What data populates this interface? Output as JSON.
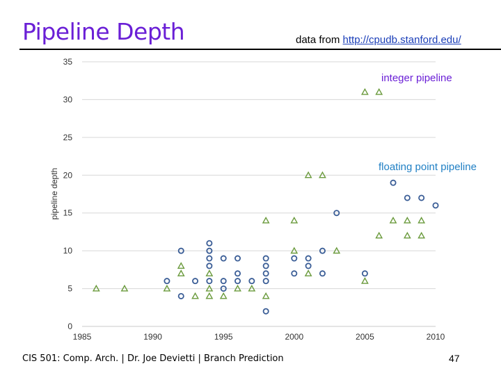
{
  "slide": {
    "title": "Pipeline Depth",
    "source_prefix": "data from ",
    "source_link": "http://cpudb.stanford.edu/",
    "footer": "CIS 501: Comp. Arch.  |  Dr. Joe Devietti  |  Branch Prediction",
    "page_number": "47"
  },
  "colors": {
    "title": "#6a1fd6",
    "integer": "#6a9a3c",
    "floating": "#3a5d96",
    "integer_label": "#6a1fd6",
    "floating_label": "#1f7fc4",
    "grid": "#d7d7d7"
  },
  "chart_data": {
    "type": "scatter",
    "ylabel": "pipeline depth",
    "xlim": [
      1985,
      2010
    ],
    "ylim": [
      0,
      35
    ],
    "xticks": [
      1985,
      1990,
      1995,
      2000,
      2005,
      2010
    ],
    "yticks": [
      0,
      5,
      10,
      15,
      20,
      25,
      30,
      35
    ],
    "grid": "horizontal",
    "annotations": [
      {
        "text": "integer pipeline",
        "series": "integer"
      },
      {
        "text": "floating point pipeline",
        "series": "floating"
      }
    ],
    "series": [
      {
        "key": "integer",
        "marker": "triangle",
        "points": [
          [
            1986,
            5
          ],
          [
            1988,
            5
          ],
          [
            1991,
            5
          ],
          [
            1992,
            8
          ],
          [
            1992,
            7
          ],
          [
            1993,
            4
          ],
          [
            1994,
            4
          ],
          [
            1994,
            5
          ],
          [
            1994,
            7
          ],
          [
            1995,
            4
          ],
          [
            1996,
            5
          ],
          [
            1997,
            5
          ],
          [
            1998,
            14
          ],
          [
            1998,
            4
          ],
          [
            2000,
            14
          ],
          [
            2000,
            10
          ],
          [
            2001,
            20
          ],
          [
            2001,
            7
          ],
          [
            2002,
            20
          ],
          [
            2003,
            10
          ],
          [
            2005,
            31
          ],
          [
            2005,
            6
          ],
          [
            2006,
            31
          ],
          [
            2006,
            12
          ],
          [
            2007,
            14
          ],
          [
            2008,
            14
          ],
          [
            2008,
            12
          ],
          [
            2009,
            14
          ],
          [
            2009,
            12
          ]
        ]
      },
      {
        "key": "floating",
        "marker": "circle",
        "points": [
          [
            1991,
            6
          ],
          [
            1992,
            10
          ],
          [
            1992,
            4
          ],
          [
            1993,
            6
          ],
          [
            1994,
            11
          ],
          [
            1994,
            10
          ],
          [
            1994,
            9
          ],
          [
            1994,
            8
          ],
          [
            1994,
            6
          ],
          [
            1995,
            9
          ],
          [
            1995,
            6
          ],
          [
            1995,
            5
          ],
          [
            1996,
            9
          ],
          [
            1996,
            7
          ],
          [
            1996,
            6
          ],
          [
            1997,
            6
          ],
          [
            1998,
            9
          ],
          [
            1998,
            8
          ],
          [
            1998,
            7
          ],
          [
            1998,
            6
          ],
          [
            1998,
            2
          ],
          [
            2000,
            9
          ],
          [
            2000,
            7
          ],
          [
            2001,
            9
          ],
          [
            2001,
            8
          ],
          [
            2002,
            10
          ],
          [
            2002,
            7
          ],
          [
            2003,
            15
          ],
          [
            2005,
            7
          ],
          [
            2007,
            19
          ],
          [
            2008,
            17
          ],
          [
            2009,
            17
          ],
          [
            2010,
            16
          ]
        ]
      }
    ]
  }
}
